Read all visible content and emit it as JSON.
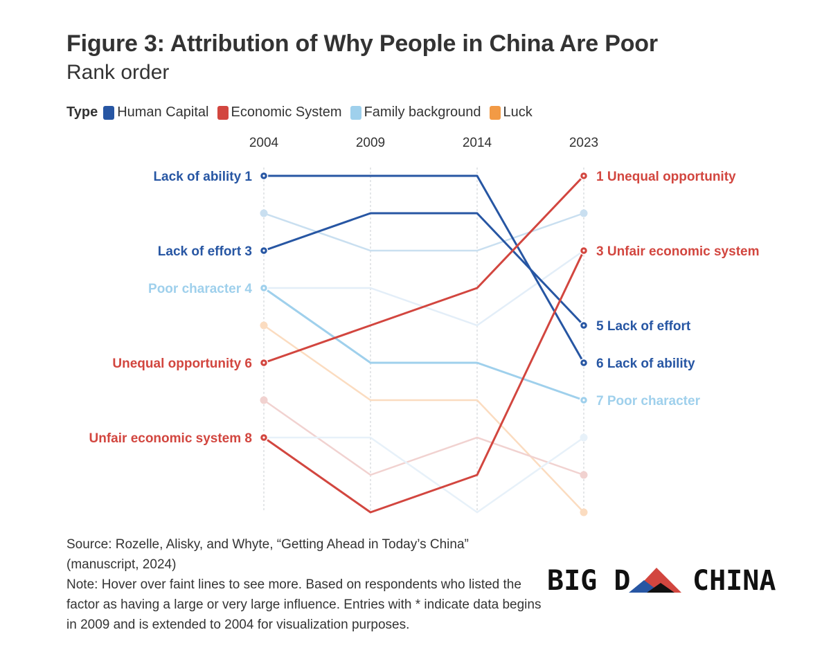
{
  "title": "Figure 3: Attribution of Why People in China Are Poor",
  "subtitle": "Rank order",
  "legend": {
    "title": "Type",
    "items": [
      {
        "label": "Human Capital",
        "color": "#2756a3"
      },
      {
        "label": "Economic System",
        "color": "#d2463f"
      },
      {
        "label": "Family background",
        "color": "#9fd0ec"
      },
      {
        "label": "Luck",
        "color": "#f29a45"
      }
    ]
  },
  "chart_data": {
    "type": "line",
    "chart_subtype": "slope/bump chart",
    "x": [
      "2004",
      "2009",
      "2014",
      "2023"
    ],
    "y_scale": "rank, 1 at top",
    "ylim": [
      1,
      10
    ],
    "grid": "dotted vertical lines at each year",
    "highlighted_series": [
      {
        "category": "Human Capital",
        "color": "#2756a3",
        "values": [
          1,
          1,
          1,
          6
        ],
        "left_label": "Lack of ability 1",
        "right_label": "6 Lack of ability"
      },
      {
        "category": "Human Capital",
        "color": "#2756a3",
        "values": [
          3,
          2,
          2,
          5
        ],
        "left_label": "Lack of effort 3",
        "right_label": "5 Lack of effort"
      },
      {
        "category": "Family background",
        "color": "#9fd0ec",
        "values": [
          4,
          6,
          6,
          7
        ],
        "left_label": "Poor character 4",
        "right_label": "7 Poor character"
      },
      {
        "category": "Economic System",
        "color": "#d2463f",
        "values": [
          6,
          5,
          4,
          1
        ],
        "left_label": "Unequal opportunity 6",
        "right_label": "1 Unequal opportunity"
      },
      {
        "category": "Economic System",
        "color": "#d2463f",
        "values": [
          8,
          10,
          9,
          3
        ],
        "left_label": "Unfair economic system 8",
        "right_label": "3 Unfair economic system"
      }
    ],
    "faint_series": [
      {
        "category": "Family background",
        "color": "#c9dff0",
        "values": [
          2,
          3,
          3,
          2
        ]
      },
      {
        "category": "Family background",
        "color": "#e3eef8",
        "values": [
          4,
          4,
          5,
          3
        ]
      },
      {
        "category": "Luck",
        "color": "#fbdcc0",
        "values": [
          5,
          7,
          7,
          10
        ]
      },
      {
        "category": "Economic System",
        "color": "#f1d2d0",
        "values": [
          7,
          9,
          8,
          9
        ]
      },
      {
        "category": "Family background",
        "color": "#e7f1f9",
        "values": [
          8,
          8,
          10,
          8
        ]
      }
    ]
  },
  "footer": {
    "source": "Source: Rozelle, Alisky, and Whyte, “Getting Ahead in Today’s China” (manuscript, 2024)",
    "note": "Note: Hover over faint lines to see more. Based on respondents who listed the factor as having a large or very large influence. Entries with * indicate data begins in 2009 and is extended to 2004 for visualization purposes."
  },
  "logo": {
    "text_left": "BIG D",
    "text_right": "CHINA",
    "colors": {
      "red": "#d2463f",
      "blue": "#2756a3",
      "dark": "#111111"
    }
  }
}
